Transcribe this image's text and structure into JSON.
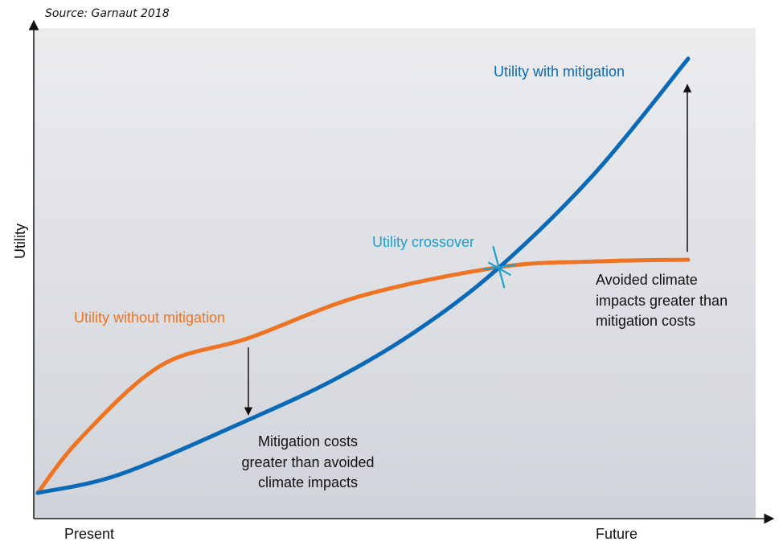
{
  "source_note": "Source: Garnaut 2018",
  "colors": {
    "with_mitigation": "#0a6ab8",
    "without_mitigation": "#ee7423",
    "crossover": "#1aa0d0",
    "text": "#111111",
    "axis": "#222222"
  },
  "chart_data": {
    "type": "line",
    "title": "",
    "xlabel": "",
    "ylabel": "Utility",
    "x_tick_labels": [
      "Present",
      "Future"
    ],
    "xlim": [
      0,
      1
    ],
    "ylim": [
      0,
      1
    ],
    "grid": false,
    "series": [
      {
        "name": "Utility with mitigation",
        "x": [
          0,
          0.127,
          0.325,
          0.461,
          0.585,
          0.71,
          0.857,
          1
        ],
        "y": [
          0,
          0.043,
          0.169,
          0.265,
          0.376,
          0.52,
          0.737,
          1
        ]
      },
      {
        "name": "Utility without mitigation",
        "x": [
          0,
          0.066,
          0.189,
          0.325,
          0.498,
          0.71,
          0.857,
          1
        ],
        "y": [
          0,
          0.126,
          0.293,
          0.357,
          0.454,
          0.52,
          0.533,
          0.537
        ]
      }
    ],
    "annotations": [
      {
        "id": "crossover",
        "text": "Utility crossover",
        "x": 0.71,
        "y": 0.52
      },
      {
        "id": "mitigation_costs",
        "lines": [
          "Mitigation costs",
          "greater than avoided",
          "climate impacts"
        ],
        "arrow": {
          "x": 0.325,
          "from_y": 0.335,
          "to_y": 0.18
        }
      },
      {
        "id": "avoided_impacts",
        "lines": [
          "Avoided climate",
          "impacts greater than",
          "mitigation costs"
        ],
        "arrow": {
          "x": 1,
          "from_y": 0.555,
          "to_y": 0.94
        }
      }
    ]
  }
}
